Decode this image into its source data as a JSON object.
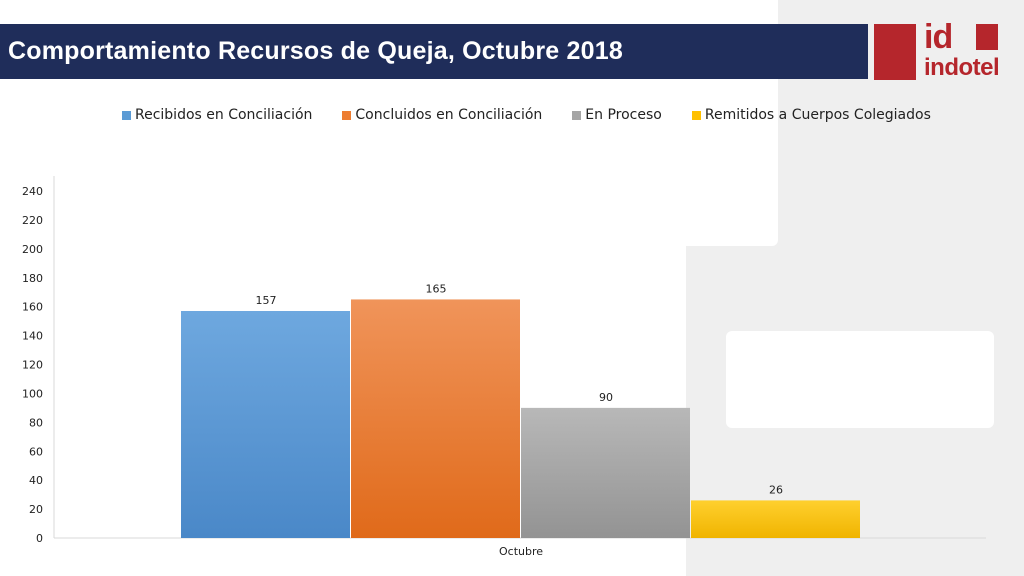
{
  "title": "Comportamiento Recursos de Queja, Octubre 2018",
  "logo": {
    "mark": "id",
    "name": "indotel"
  },
  "colors": {
    "title_bar": "#1f2d5a",
    "brand_red": "#b5262c",
    "series": [
      "#5b9bd5",
      "#ed7d31",
      "#a5a5a5",
      "#ffc000"
    ]
  },
  "chart_data": {
    "type": "bar",
    "categories": [
      "Octubre"
    ],
    "series": [
      {
        "name": "Recibidos en Conciliación",
        "values": [
          157
        ]
      },
      {
        "name": "Concluidos en Conciliación",
        "values": [
          165
        ]
      },
      {
        "name": "En Proceso",
        "values": [
          90
        ]
      },
      {
        "name": "Remitidos a Cuerpos Colegiados",
        "values": [
          26
        ]
      }
    ],
    "yticks": [
      "0",
      "20",
      "40",
      "60",
      "80",
      "100",
      "120",
      "140",
      "160",
      "180",
      "200",
      "220",
      "240"
    ],
    "ylim": [
      0,
      240
    ],
    "legend": "top",
    "grid": false
  }
}
